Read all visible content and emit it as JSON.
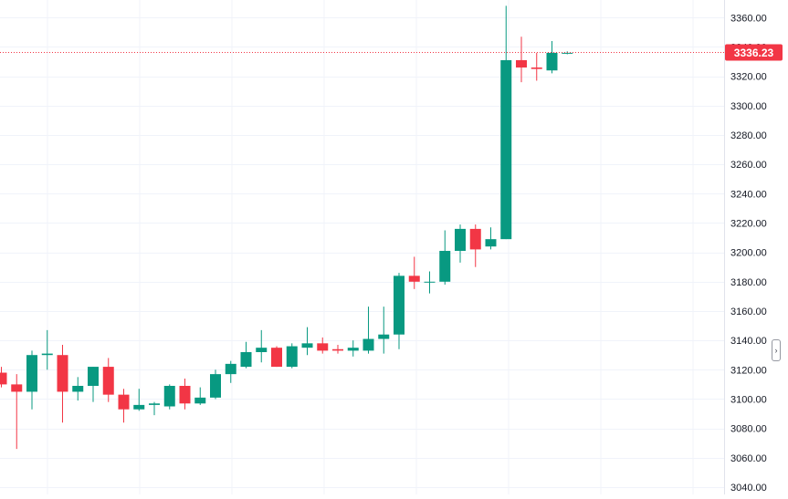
{
  "chart_data": {
    "type": "candlestick",
    "ylim": [
      3035,
      3372
    ],
    "y_ticks": [
      "3040.00",
      "3060.00",
      "3080.00",
      "3100.00",
      "3120.00",
      "3140.00",
      "3160.00",
      "3180.00",
      "3200.00",
      "3220.00",
      "3240.00",
      "3260.00",
      "3280.00",
      "3300.00",
      "3320.00",
      "3340.00",
      "3360.00"
    ],
    "y_tick_values": [
      3040,
      3060,
      3080,
      3100,
      3120,
      3140,
      3160,
      3180,
      3200,
      3220,
      3240,
      3260,
      3280,
      3300,
      3320,
      3340,
      3360
    ],
    "current_price": 3336.23,
    "current_price_label": "3336.23",
    "grid": true,
    "colors": {
      "up": "#089981",
      "down": "#f23645",
      "grid": "#f0f3fa",
      "axis_text": "#131722",
      "price_line": "#f23645"
    },
    "candles": [
      {
        "o": 3118,
        "h": 3122,
        "l": 3108,
        "c": 3110
      },
      {
        "o": 3110,
        "h": 3117,
        "l": 3066,
        "c": 3105
      },
      {
        "o": 3105,
        "h": 3133,
        "l": 3093,
        "c": 3130
      },
      {
        "o": 3130,
        "h": 3147,
        "l": 3120,
        "c": 3131
      },
      {
        "o": 3130,
        "h": 3137,
        "l": 3084,
        "c": 3105
      },
      {
        "o": 3105,
        "h": 3115,
        "l": 3099,
        "c": 3109
      },
      {
        "o": 3109,
        "h": 3122,
        "l": 3098,
        "c": 3122
      },
      {
        "o": 3122,
        "h": 3128,
        "l": 3098,
        "c": 3103
      },
      {
        "o": 3103,
        "h": 3107,
        "l": 3084,
        "c": 3093
      },
      {
        "o": 3093,
        "h": 3107,
        "l": 3092,
        "c": 3096
      },
      {
        "o": 3096,
        "h": 3098,
        "l": 3089,
        "c": 3097
      },
      {
        "o": 3095,
        "h": 3110,
        "l": 3093,
        "c": 3109
      },
      {
        "o": 3109,
        "h": 3114,
        "l": 3093,
        "c": 3097
      },
      {
        "o": 3097,
        "h": 3108,
        "l": 3096,
        "c": 3101
      },
      {
        "o": 3101,
        "h": 3120,
        "l": 3100,
        "c": 3117
      },
      {
        "o": 3117,
        "h": 3126,
        "l": 3111,
        "c": 3124
      },
      {
        "o": 3122,
        "h": 3139,
        "l": 3121,
        "c": 3132
      },
      {
        "o": 3132,
        "h": 3147,
        "l": 3125,
        "c": 3135
      },
      {
        "o": 3135,
        "h": 3136,
        "l": 3122,
        "c": 3122
      },
      {
        "o": 3122,
        "h": 3138,
        "l": 3121,
        "c": 3136
      },
      {
        "o": 3135,
        "h": 3149,
        "l": 3130,
        "c": 3138
      },
      {
        "o": 3138,
        "h": 3142,
        "l": 3131,
        "c": 3133
      },
      {
        "o": 3134,
        "h": 3137,
        "l": 3131,
        "c": 3133
      },
      {
        "o": 3133,
        "h": 3140,
        "l": 3129,
        "c": 3135
      },
      {
        "o": 3133,
        "h": 3163,
        "l": 3131,
        "c": 3141
      },
      {
        "o": 3141,
        "h": 3163,
        "l": 3131,
        "c": 3144
      },
      {
        "o": 3144,
        "h": 3186,
        "l": 3134,
        "c": 3184
      },
      {
        "o": 3184,
        "h": 3197,
        "l": 3175,
        "c": 3180
      },
      {
        "o": 3180,
        "h": 3187,
        "l": 3172,
        "c": 3180
      },
      {
        "o": 3180,
        "h": 3215,
        "l": 3178,
        "c": 3201
      },
      {
        "o": 3201,
        "h": 3219,
        "l": 3193,
        "c": 3216
      },
      {
        "o": 3216,
        "h": 3219,
        "l": 3190,
        "c": 3202
      },
      {
        "o": 3204,
        "h": 3217,
        "l": 3202,
        "c": 3209
      },
      {
        "o": 3209,
        "h": 3368,
        "l": 3209,
        "c": 3331
      },
      {
        "o": 3331,
        "h": 3347,
        "l": 3316,
        "c": 3326
      },
      {
        "o": 3326,
        "h": 3336,
        "l": 3317,
        "c": 3325
      },
      {
        "o": 3324,
        "h": 3344,
        "l": 3322,
        "c": 3336
      },
      {
        "o": 3336,
        "h": 3337,
        "l": 3335,
        "c": 3336
      }
    ]
  }
}
